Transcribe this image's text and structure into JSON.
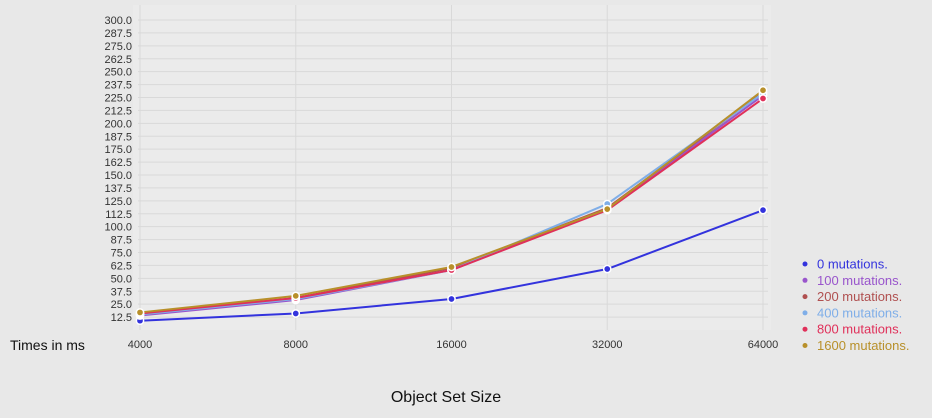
{
  "chart_data": {
    "type": "line",
    "title": "",
    "xlabel": "Object Set Size",
    "ylabel": "Times in ms",
    "x": [
      4000,
      8000,
      16000,
      32000,
      64000
    ],
    "x_tick_labels": [
      "4000",
      "8000",
      "16000",
      "32000",
      "64000"
    ],
    "y_ticks": [
      "12.5",
      "25.0",
      "37.5",
      "50.0",
      "62.5",
      "75.0",
      "87.5",
      "100.0",
      "112.5",
      "125.0",
      "137.5",
      "150.0",
      "162.5",
      "175.0",
      "187.5",
      "200.0",
      "212.5",
      "225.0",
      "237.5",
      "250.0",
      "262.5",
      "275.0",
      "287.5",
      "300.0"
    ],
    "ylim": [
      0,
      300
    ],
    "grid": true,
    "legend_position": "bottom-right",
    "series": [
      {
        "name": "0 mutations.",
        "color": "#3333dd",
        "values": [
          9,
          16,
          30,
          59,
          116
        ]
      },
      {
        "name": "100 mutations.",
        "color": "#9955cc",
        "values": [
          14,
          29,
          58,
          117,
          227
        ]
      },
      {
        "name": "200 mutations.",
        "color": "#b05050",
        "values": [
          15,
          31,
          60,
          118,
          230
        ]
      },
      {
        "name": "400 mutations.",
        "color": "#7faee8",
        "values": [
          15,
          30,
          58,
          122,
          229
        ]
      },
      {
        "name": "800 mutations.",
        "color": "#e0305a",
        "values": [
          16,
          31,
          58,
          116,
          224
        ]
      },
      {
        "name": "1600 mutations.",
        "color": "#b8902a",
        "values": [
          17,
          33,
          61,
          117,
          232
        ]
      }
    ]
  }
}
